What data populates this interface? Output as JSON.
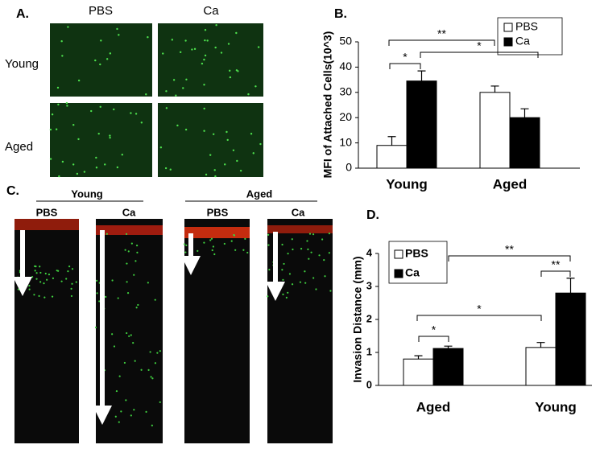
{
  "panels": {
    "a": {
      "label": "A.",
      "columns": [
        "PBS",
        "Ca"
      ],
      "rows": [
        "Young",
        "Aged"
      ]
    },
    "c": {
      "label": "C.",
      "groups": [
        "Young",
        "Aged"
      ],
      "columns": [
        "PBS",
        "Ca",
        "PBS",
        "Ca"
      ]
    }
  },
  "chart_data": [
    {
      "type": "bar",
      "panel_label": "B.",
      "ylabel": "MFI of Attached Cells(10^3)",
      "categories": [
        "Young",
        "Aged"
      ],
      "series": [
        {
          "name": "PBS",
          "color": "#ffffff",
          "values": [
            9,
            30
          ],
          "errors": [
            3.5,
            2.5
          ]
        },
        {
          "name": "Ca",
          "color": "#000000",
          "values": [
            34.5,
            20
          ],
          "errors": [
            4,
            3.5
          ]
        }
      ],
      "ylim": [
        0,
        50
      ],
      "yticks": [
        0,
        10,
        20,
        30,
        40,
        50
      ],
      "annotations": [
        "*",
        "**",
        "*"
      ]
    },
    {
      "type": "bar",
      "panel_label": "D.",
      "ylabel": "Invasion Distance (mm)",
      "categories": [
        "Aged",
        "Young"
      ],
      "series": [
        {
          "name": "PBS",
          "color": "#ffffff",
          "values": [
            0.8,
            1.15
          ],
          "errors": [
            0.1,
            0.15
          ]
        },
        {
          "name": "Ca",
          "color": "#000000",
          "values": [
            1.12,
            2.8
          ],
          "errors": [
            0.07,
            0.45
          ]
        }
      ],
      "ylim": [
        0,
        4
      ],
      "yticks": [
        0,
        1,
        2,
        3,
        4
      ],
      "annotations": [
        "*",
        "*",
        "**",
        "**"
      ]
    }
  ]
}
